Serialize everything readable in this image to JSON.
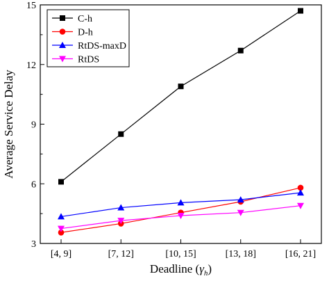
{
  "chart_data": {
    "type": "line",
    "title": "",
    "xlabel": "Deadline (",
    "xlabel_symbol": "γ",
    "xlabel_subscript": "h",
    "xlabel_close": ")",
    "ylabel": "Average Service Delay",
    "categories": [
      "[4, 9]",
      "[7, 12]",
      "[10, 15]",
      "[13, 18]",
      "[16, 21]"
    ],
    "ylim": [
      3,
      15
    ],
    "yticks": [
      3,
      6,
      9,
      12,
      15
    ],
    "grid": false,
    "legend_position": "top-left",
    "series": [
      {
        "name": "C-h",
        "marker": "square",
        "color": "#000000",
        "values": [
          6.1,
          8.5,
          10.9,
          12.7,
          14.7
        ]
      },
      {
        "name": "D-h",
        "marker": "circle",
        "color": "#ff0000",
        "values": [
          3.55,
          4.0,
          4.55,
          5.1,
          5.8
        ]
      },
      {
        "name": "RtDS-maxD",
        "marker": "triangle-up",
        "color": "#0000ff",
        "values": [
          4.35,
          4.8,
          5.05,
          5.2,
          5.55
        ]
      },
      {
        "name": "RtDS",
        "marker": "triangle-down",
        "color": "#ff00ff",
        "values": [
          3.75,
          4.15,
          4.4,
          4.55,
          4.9
        ]
      }
    ]
  }
}
